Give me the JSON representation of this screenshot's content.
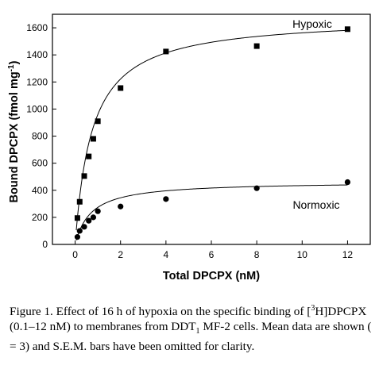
{
  "chart_data": {
    "type": "scatter",
    "xlabel": "Total DPCPX (nM)",
    "ylabel": "Bound DPCPX (fmol mg",
    "ylabel_sup": "-1",
    "ylabel_close": ")",
    "xlim": [
      -1,
      13
    ],
    "ylim": [
      0,
      1700
    ],
    "xticks": [
      0,
      2,
      4,
      6,
      8,
      10,
      12
    ],
    "yticks": [
      0,
      200,
      400,
      600,
      800,
      1000,
      1200,
      1400,
      1600
    ],
    "grid": false,
    "series": [
      {
        "name": "Hypoxic",
        "marker": "square",
        "fit": "hyperbolic",
        "fit_params": {
          "Bmax": 1680,
          "Kd": 0.75
        },
        "x": [
          0.1,
          0.2,
          0.4,
          0.6,
          0.8,
          1,
          2,
          4,
          8,
          12
        ],
        "y": [
          195,
          315,
          505,
          650,
          780,
          910,
          1155,
          1425,
          1465,
          1590
        ]
      },
      {
        "name": "Normoxic",
        "marker": "circle",
        "fit": "hyperbolic",
        "fit_params": {
          "Bmax": 465,
          "Kd": 0.7
        },
        "x": [
          0.1,
          0.2,
          0.4,
          0.6,
          0.8,
          1,
          2,
          4,
          8,
          12
        ],
        "y": [
          55,
          100,
          130,
          175,
          200,
          245,
          280,
          335,
          415,
          460
        ]
      }
    ]
  },
  "caption": {
    "part1": "Figure 1. Effect of 16 h of hypoxia on the specific binding of [",
    "sup1": "3",
    "part2": "H]DPCPX (0.1–12 nM) to membranes from DDT",
    "sub1": "1",
    "part3": " MF-2 cells. Mean data are shown (   = 3) and S.E.M. bars have been omitted for clarity."
  }
}
